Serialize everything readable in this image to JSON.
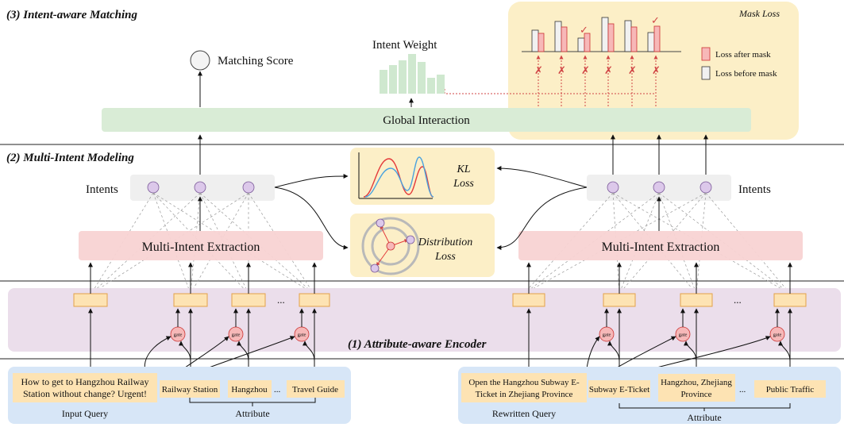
{
  "sections": {
    "matching": "(3) Intent-aware Matching",
    "modeling": "(2) Multi-Intent Modeling",
    "encoder": "(1) Attribute-aware Encoder"
  },
  "labels": {
    "matching_score": "Matching Score",
    "intent_weight": "Intent Weight",
    "global_interaction": "Global Interaction",
    "mask_loss": "Mask Loss",
    "legend_after": "Loss after mask",
    "legend_before": "Loss before mask",
    "intents_left": "Intents",
    "intents_right": "Intents",
    "extraction_left": "Multi-Intent Extraction",
    "extraction_right": "Multi-Intent Extraction",
    "kl_loss_line1": "KL",
    "kl_loss_line2": "Loss",
    "dist_loss_line1": "Distribution",
    "dist_loss_line2": "Loss",
    "gate": "gate",
    "ellipsis": "...",
    "input_query_label": "Input Query",
    "rewritten_query_label": "Rewritten Query",
    "attribute_label": "Attribute"
  },
  "left_input": {
    "query_line1": "How to get to Hangzhou Railway",
    "query_line2": "Station without change? Urgent!",
    "attributes": [
      "Railway Station",
      "Hangzhou",
      "Travel Guide"
    ]
  },
  "right_input": {
    "query_line1": "Open the Hangzhou Subway E-",
    "query_line2": "Ticket in Zhejiang Province",
    "attr1": "Subway E-Ticket",
    "attr2_line1": "Hangzhou, Zhejiang",
    "attr2_line2": "Province",
    "attr3": "Public Traffic"
  },
  "marks": {
    "check": "✓",
    "cross": "✗"
  },
  "colors": {
    "green_panel": "#d9ecd6",
    "pink_panel": "#f8d3d3",
    "purple_panel": "#ebdeeb",
    "blue_panel": "#d7e6f7",
    "yellow_panel": "#fcefc7",
    "node_purple": "#dcc8ea",
    "gate_pink": "#f6b8b8",
    "token_orange": "#fde3b3"
  }
}
